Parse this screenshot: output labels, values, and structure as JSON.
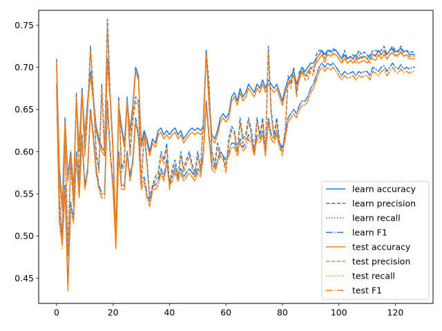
{
  "chart_data": {
    "type": "line",
    "title": "",
    "xlabel": "",
    "ylabel": "",
    "xlim": [
      -6.35,
      133.35
    ],
    "ylim": [
      0.42,
      0.7675
    ],
    "xticks": [
      0,
      20,
      40,
      60,
      80,
      100,
      120
    ],
    "yticks": [
      0.45,
      0.5,
      0.55,
      0.6,
      0.65,
      0.7,
      0.75
    ],
    "ytick_format": 2,
    "grid": false,
    "legend_position": "lower right",
    "colors": {
      "learn": "#1f77e4",
      "test": "#ff7f0e"
    },
    "series": [
      {
        "name": "learn accuracy",
        "group": "learn",
        "dash": "solid",
        "values": [
          0.705,
          0.58,
          0.535,
          0.64,
          0.57,
          0.6,
          0.555,
          0.662,
          0.605,
          0.675,
          0.62,
          0.66,
          0.695,
          0.665,
          0.63,
          0.615,
          0.605,
          0.6,
          0.71,
          0.665,
          0.605,
          0.5,
          0.655,
          0.63,
          0.61,
          0.66,
          0.625,
          0.655,
          0.7,
          0.69,
          0.61,
          0.625,
          0.615,
          0.6,
          0.615,
          0.61,
          0.625,
          0.628,
          0.62,
          0.625,
          0.62,
          0.625,
          0.628,
          0.62,
          0.625,
          0.615,
          0.62,
          0.625,
          0.628,
          0.625,
          0.628,
          0.625,
          0.63,
          0.72,
          0.66,
          0.62,
          0.615,
          0.625,
          0.64,
          0.645,
          0.64,
          0.645,
          0.665,
          0.67,
          0.66,
          0.675,
          0.665,
          0.67,
          0.68,
          0.675,
          0.67,
          0.68,
          0.675,
          0.685,
          0.675,
          0.685,
          0.68,
          0.675,
          0.68,
          0.67,
          0.66,
          0.675,
          0.685,
          0.69,
          0.695,
          0.68,
          0.69,
          0.7,
          0.695,
          0.7,
          0.705,
          0.705,
          0.71,
          0.715,
          0.72,
          0.715,
          0.72,
          0.718,
          0.72,
          0.72,
          0.715,
          0.71,
          0.715,
          0.71,
          0.713,
          0.71,
          0.715,
          0.71,
          0.712,
          0.713,
          0.71,
          0.715,
          0.715,
          0.713,
          0.72,
          0.715,
          0.72,
          0.715,
          0.72,
          0.722,
          0.718,
          0.72,
          0.722,
          0.718,
          0.72,
          0.715,
          0.715,
          0.715
        ]
      },
      {
        "name": "learn precision",
        "group": "learn",
        "dash": "dashed",
        "values": [
          0.71,
          0.545,
          0.5,
          0.62,
          0.48,
          0.59,
          0.54,
          0.67,
          0.56,
          0.675,
          0.6,
          0.65,
          0.725,
          0.67,
          0.6,
          0.58,
          0.68,
          0.6,
          0.757,
          0.665,
          0.6,
          0.49,
          0.665,
          0.58,
          0.59,
          0.665,
          0.6,
          0.64,
          0.665,
          0.66,
          0.56,
          0.625,
          0.59,
          0.545,
          0.56,
          0.57,
          0.575,
          0.6,
          0.59,
          0.61,
          0.56,
          0.58,
          0.59,
          0.57,
          0.6,
          0.58,
          0.59,
          0.6,
          0.585,
          0.575,
          0.6,
          0.58,
          0.64,
          0.72,
          0.68,
          0.6,
          0.585,
          0.61,
          0.6,
          0.595,
          0.58,
          0.615,
          0.63,
          0.625,
          0.6,
          0.64,
          0.615,
          0.62,
          0.64,
          0.625,
          0.6,
          0.64,
          0.62,
          0.64,
          0.6,
          0.725,
          0.65,
          0.62,
          0.64,
          0.61,
          0.6,
          0.625,
          0.69,
          0.68,
          0.7,
          0.67,
          0.695,
          0.7,
          0.69,
          0.69,
          0.7,
          0.695,
          0.715,
          0.72,
          0.72,
          0.71,
          0.72,
          0.72,
          0.722,
          0.72,
          0.715,
          0.71,
          0.72,
          0.71,
          0.712,
          0.715,
          0.71,
          0.72,
          0.715,
          0.718,
          0.715,
          0.71,
          0.72,
          0.72,
          0.718,
          0.72,
          0.725,
          0.715,
          0.72,
          0.725,
          0.72,
          0.718,
          0.725,
          0.718,
          0.72,
          0.718,
          0.718,
          0.718
        ]
      },
      {
        "name": "learn recall",
        "group": "learn",
        "dash": "dotted",
        "values": [
          0.68,
          0.52,
          0.49,
          0.56,
          0.44,
          0.54,
          0.52,
          0.6,
          0.55,
          0.62,
          0.56,
          0.58,
          0.65,
          0.62,
          0.58,
          0.56,
          0.55,
          0.55,
          0.66,
          0.6,
          0.56,
          0.49,
          0.6,
          0.56,
          0.56,
          0.6,
          0.57,
          0.59,
          0.64,
          0.62,
          0.56,
          0.57,
          0.55,
          0.54,
          0.56,
          0.56,
          0.565,
          0.58,
          0.57,
          0.59,
          0.565,
          0.57,
          0.58,
          0.57,
          0.58,
          0.57,
          0.575,
          0.58,
          0.575,
          0.57,
          0.58,
          0.575,
          0.6,
          0.66,
          0.62,
          0.585,
          0.58,
          0.59,
          0.6,
          0.595,
          0.59,
          0.6,
          0.61,
          0.61,
          0.6,
          0.615,
          0.605,
          0.61,
          0.62,
          0.615,
          0.6,
          0.62,
          0.615,
          0.625,
          0.6,
          0.64,
          0.62,
          0.615,
          0.625,
          0.61,
          0.605,
          0.62,
          0.64,
          0.645,
          0.65,
          0.645,
          0.655,
          0.66,
          0.66,
          0.665,
          0.675,
          0.68,
          0.69,
          0.7,
          0.705,
          0.7,
          0.705,
          0.702,
          0.705,
          0.7,
          0.695,
          0.69,
          0.695,
          0.692,
          0.693,
          0.695,
          0.69,
          0.695,
          0.693,
          0.695,
          0.695,
          0.69,
          0.7,
          0.698,
          0.695,
          0.7,
          0.702,
          0.695,
          0.7,
          0.705,
          0.7,
          0.698,
          0.703,
          0.698,
          0.7,
          0.698,
          0.7,
          0.7
        ]
      },
      {
        "name": "learn F1",
        "group": "learn",
        "dash": "dashdot",
        "values": [
          0.68,
          0.52,
          0.5,
          0.56,
          0.44,
          0.54,
          0.52,
          0.6,
          0.55,
          0.62,
          0.56,
          0.58,
          0.65,
          0.62,
          0.58,
          0.56,
          0.55,
          0.55,
          0.66,
          0.6,
          0.56,
          0.49,
          0.6,
          0.56,
          0.56,
          0.6,
          0.57,
          0.59,
          0.64,
          0.62,
          0.56,
          0.57,
          0.55,
          0.54,
          0.56,
          0.56,
          0.565,
          0.58,
          0.57,
          0.59,
          0.565,
          0.57,
          0.58,
          0.57,
          0.58,
          0.57,
          0.575,
          0.58,
          0.575,
          0.57,
          0.58,
          0.575,
          0.6,
          0.66,
          0.62,
          0.585,
          0.58,
          0.59,
          0.6,
          0.595,
          0.59,
          0.6,
          0.61,
          0.61,
          0.6,
          0.615,
          0.605,
          0.61,
          0.62,
          0.615,
          0.6,
          0.62,
          0.615,
          0.625,
          0.6,
          0.64,
          0.62,
          0.615,
          0.625,
          0.61,
          0.605,
          0.62,
          0.64,
          0.645,
          0.65,
          0.645,
          0.655,
          0.66,
          0.66,
          0.665,
          0.675,
          0.68,
          0.69,
          0.7,
          0.705,
          0.7,
          0.705,
          0.702,
          0.705,
          0.7,
          0.695,
          0.69,
          0.695,
          0.692,
          0.693,
          0.695,
          0.69,
          0.695,
          0.693,
          0.695,
          0.695,
          0.69,
          0.7,
          0.698,
          0.695,
          0.7,
          0.702,
          0.695,
          0.7,
          0.705,
          0.7,
          0.698,
          0.703,
          0.698,
          0.7,
          0.698,
          0.7,
          0.7
        ]
      },
      {
        "name": "test accuracy",
        "group": "test",
        "dash": "solid",
        "values": [
          0.7,
          0.57,
          0.53,
          0.635,
          0.565,
          0.595,
          0.55,
          0.66,
          0.6,
          0.67,
          0.615,
          0.655,
          0.69,
          0.66,
          0.625,
          0.61,
          0.6,
          0.595,
          0.705,
          0.66,
          0.6,
          0.495,
          0.65,
          0.625,
          0.605,
          0.655,
          0.62,
          0.65,
          0.695,
          0.685,
          0.605,
          0.62,
          0.61,
          0.595,
          0.61,
          0.605,
          0.62,
          0.623,
          0.615,
          0.62,
          0.615,
          0.62,
          0.623,
          0.615,
          0.62,
          0.61,
          0.615,
          0.62,
          0.623,
          0.62,
          0.623,
          0.62,
          0.625,
          0.715,
          0.655,
          0.615,
          0.61,
          0.62,
          0.635,
          0.64,
          0.635,
          0.64,
          0.66,
          0.665,
          0.655,
          0.67,
          0.66,
          0.665,
          0.675,
          0.67,
          0.665,
          0.675,
          0.67,
          0.68,
          0.67,
          0.68,
          0.675,
          0.67,
          0.675,
          0.665,
          0.655,
          0.67,
          0.68,
          0.685,
          0.69,
          0.675,
          0.685,
          0.695,
          0.69,
          0.695,
          0.7,
          0.7,
          0.705,
          0.71,
          0.715,
          0.71,
          0.715,
          0.713,
          0.715,
          0.715,
          0.71,
          0.705,
          0.71,
          0.705,
          0.708,
          0.705,
          0.71,
          0.705,
          0.707,
          0.708,
          0.705,
          0.71,
          0.71,
          0.708,
          0.715,
          0.71,
          0.715,
          0.71,
          0.715,
          0.717,
          0.713,
          0.715,
          0.717,
          0.713,
          0.715,
          0.71,
          0.71,
          0.71
        ]
      },
      {
        "name": "test precision",
        "group": "test",
        "dash": "dashed",
        "values": [
          0.705,
          0.54,
          0.495,
          0.615,
          0.475,
          0.585,
          0.535,
          0.665,
          0.555,
          0.67,
          0.595,
          0.645,
          0.72,
          0.665,
          0.595,
          0.575,
          0.675,
          0.595,
          0.75,
          0.66,
          0.595,
          0.485,
          0.66,
          0.575,
          0.585,
          0.66,
          0.595,
          0.635,
          0.66,
          0.655,
          0.555,
          0.62,
          0.585,
          0.54,
          0.555,
          0.565,
          0.57,
          0.595,
          0.585,
          0.605,
          0.555,
          0.575,
          0.585,
          0.565,
          0.595,
          0.575,
          0.585,
          0.595,
          0.58,
          0.57,
          0.595,
          0.575,
          0.635,
          0.715,
          0.675,
          0.595,
          0.58,
          0.605,
          0.595,
          0.59,
          0.575,
          0.61,
          0.625,
          0.62,
          0.595,
          0.635,
          0.61,
          0.615,
          0.635,
          0.62,
          0.595,
          0.635,
          0.615,
          0.635,
          0.595,
          0.72,
          0.645,
          0.615,
          0.635,
          0.605,
          0.595,
          0.62,
          0.685,
          0.675,
          0.695,
          0.665,
          0.69,
          0.695,
          0.685,
          0.685,
          0.695,
          0.69,
          0.71,
          0.715,
          0.715,
          0.705,
          0.715,
          0.715,
          0.717,
          0.715,
          0.71,
          0.705,
          0.715,
          0.705,
          0.707,
          0.71,
          0.705,
          0.715,
          0.71,
          0.713,
          0.71,
          0.705,
          0.715,
          0.715,
          0.713,
          0.715,
          0.72,
          0.71,
          0.715,
          0.72,
          0.715,
          0.713,
          0.72,
          0.713,
          0.715,
          0.713,
          0.713,
          0.713
        ]
      },
      {
        "name": "test recall",
        "group": "test",
        "dash": "dotted",
        "values": [
          0.675,
          0.515,
          0.485,
          0.555,
          0.435,
          0.535,
          0.515,
          0.595,
          0.545,
          0.615,
          0.555,
          0.575,
          0.645,
          0.615,
          0.575,
          0.555,
          0.545,
          0.545,
          0.655,
          0.595,
          0.555,
          0.485,
          0.595,
          0.555,
          0.555,
          0.595,
          0.565,
          0.585,
          0.635,
          0.615,
          0.555,
          0.565,
          0.545,
          0.535,
          0.555,
          0.555,
          0.56,
          0.575,
          0.565,
          0.585,
          0.56,
          0.565,
          0.575,
          0.565,
          0.575,
          0.565,
          0.57,
          0.575,
          0.57,
          0.565,
          0.575,
          0.57,
          0.595,
          0.655,
          0.615,
          0.58,
          0.575,
          0.585,
          0.595,
          0.59,
          0.585,
          0.595,
          0.605,
          0.605,
          0.595,
          0.61,
          0.6,
          0.605,
          0.615,
          0.61,
          0.595,
          0.615,
          0.61,
          0.62,
          0.595,
          0.635,
          0.615,
          0.61,
          0.62,
          0.605,
          0.6,
          0.615,
          0.635,
          0.64,
          0.645,
          0.64,
          0.65,
          0.655,
          0.655,
          0.66,
          0.67,
          0.675,
          0.685,
          0.695,
          0.7,
          0.695,
          0.7,
          0.697,
          0.7,
          0.695,
          0.69,
          0.685,
          0.69,
          0.687,
          0.688,
          0.69,
          0.685,
          0.69,
          0.688,
          0.69,
          0.69,
          0.685,
          0.695,
          0.693,
          0.69,
          0.695,
          0.697,
          0.69,
          0.695,
          0.7,
          0.695,
          0.693,
          0.698,
          0.693,
          0.695,
          0.693,
          0.695,
          0.695
        ]
      },
      {
        "name": "test F1",
        "group": "test",
        "dash": "dashdot",
        "values": [
          0.675,
          0.515,
          0.49,
          0.555,
          0.435,
          0.535,
          0.515,
          0.595,
          0.545,
          0.615,
          0.555,
          0.575,
          0.645,
          0.615,
          0.575,
          0.555,
          0.545,
          0.545,
          0.655,
          0.595,
          0.555,
          0.485,
          0.595,
          0.555,
          0.555,
          0.595,
          0.565,
          0.585,
          0.635,
          0.615,
          0.555,
          0.565,
          0.545,
          0.535,
          0.555,
          0.555,
          0.56,
          0.575,
          0.565,
          0.585,
          0.56,
          0.565,
          0.575,
          0.565,
          0.575,
          0.565,
          0.57,
          0.575,
          0.57,
          0.565,
          0.575,
          0.57,
          0.595,
          0.655,
          0.615,
          0.58,
          0.575,
          0.585,
          0.595,
          0.59,
          0.585,
          0.595,
          0.605,
          0.605,
          0.595,
          0.61,
          0.6,
          0.605,
          0.615,
          0.61,
          0.595,
          0.615,
          0.61,
          0.62,
          0.595,
          0.635,
          0.615,
          0.61,
          0.62,
          0.605,
          0.6,
          0.615,
          0.635,
          0.64,
          0.645,
          0.64,
          0.65,
          0.655,
          0.655,
          0.66,
          0.67,
          0.675,
          0.685,
          0.695,
          0.7,
          0.695,
          0.7,
          0.697,
          0.7,
          0.695,
          0.69,
          0.685,
          0.69,
          0.687,
          0.688,
          0.69,
          0.685,
          0.69,
          0.688,
          0.69,
          0.69,
          0.685,
          0.695,
          0.693,
          0.69,
          0.695,
          0.697,
          0.69,
          0.695,
          0.7,
          0.695,
          0.693,
          0.698,
          0.693,
          0.695,
          0.693,
          0.695,
          0.695
        ]
      }
    ]
  }
}
